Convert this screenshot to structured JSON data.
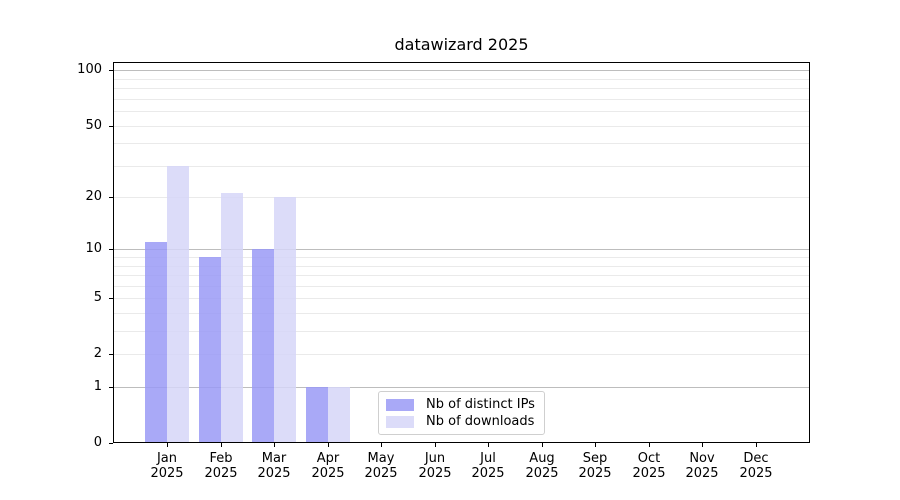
{
  "chart_data": {
    "type": "bar",
    "title": "datawizard 2025",
    "categories": [
      "Jan",
      "Feb",
      "Mar",
      "Apr",
      "May",
      "Jun",
      "Jul",
      "Aug",
      "Sep",
      "Oct",
      "Nov",
      "Dec"
    ],
    "year_label": "2025",
    "series": [
      {
        "name": "Nb of distinct IPs",
        "color": "rgba(154,154,246,0.85)",
        "color_solid": "#a9a9f7",
        "values": [
          11,
          9,
          10,
          1,
          0,
          0,
          0,
          0,
          0,
          0,
          0,
          0
        ]
      },
      {
        "name": "Nb of downloads",
        "color": "rgba(214,214,248,0.85)",
        "color_solid": "#dcdcf9",
        "values": [
          30,
          21,
          20,
          1,
          0,
          0,
          0,
          0,
          0,
          0,
          0,
          0
        ]
      }
    ],
    "y_scale": "log10(1+y)",
    "y_ticks": [
      0,
      1,
      2,
      5,
      10,
      20,
      50,
      100
    ],
    "y_axis_max": 111,
    "gridlines": {
      "major": [
        1,
        10,
        100
      ],
      "minor": [
        2,
        3,
        4,
        5,
        6,
        7,
        8,
        9,
        20,
        30,
        40,
        50,
        60,
        70,
        80,
        90
      ]
    },
    "grid": true,
    "legend_position": "lower center",
    "colors": {
      "background": "#ffffff",
      "axis": "#000000",
      "major_grid": "#bdbdbd",
      "minor_grid": "#eaeaea",
      "text": "#000000"
    }
  }
}
